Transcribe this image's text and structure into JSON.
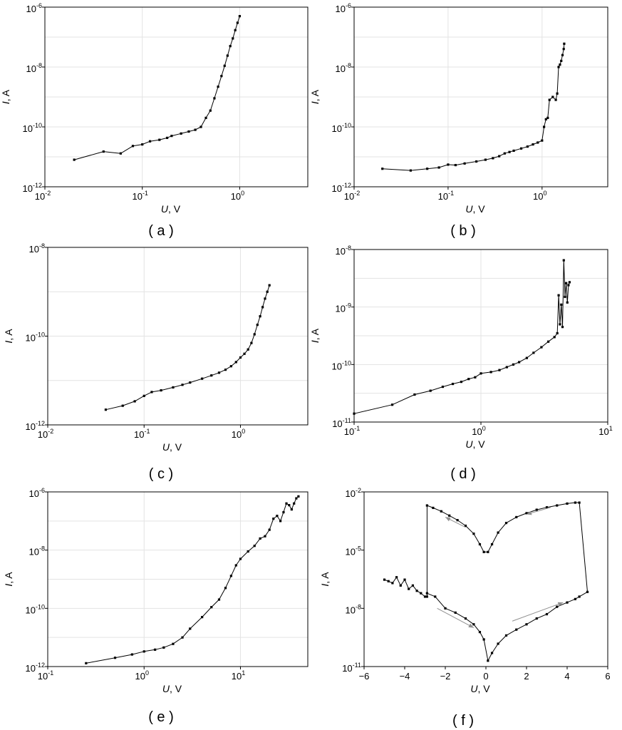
{
  "chart_data": [
    {
      "id": "a",
      "type": "line",
      "panel_label": "( a )",
      "xscale": "log",
      "yscale": "log",
      "xlim": [
        0.01,
        5
      ],
      "ylim": [
        1e-12,
        1e-06
      ],
      "xticks": [
        {
          "v": 0.01,
          "base": "10",
          "exp": "-2"
        },
        {
          "v": 0.1,
          "base": "10",
          "exp": "-1"
        },
        {
          "v": 1,
          "base": "10",
          "exp": "0"
        }
      ],
      "yticks": [
        {
          "v": 1e-12,
          "base": "10",
          "exp": "-12"
        },
        {
          "v": 1e-10,
          "base": "10",
          "exp": "-10"
        },
        {
          "v": 1e-08,
          "base": "10",
          "exp": "-8"
        },
        {
          "v": 1e-06,
          "base": "10",
          "exp": "-6"
        }
      ],
      "xlabel": {
        "var": "U",
        "unit": ", V"
      },
      "ylabel": {
        "var": "I",
        "unit": ", A"
      },
      "grid": true,
      "x": [
        0.02,
        0.04,
        0.06,
        0.08,
        0.1,
        0.12,
        0.15,
        0.18,
        0.2,
        0.25,
        0.3,
        0.35,
        0.4,
        0.45,
        0.5,
        0.55,
        0.6,
        0.65,
        0.7,
        0.75,
        0.8,
        0.85,
        0.9,
        0.95,
        1.0
      ],
      "y": [
        8e-12,
        1.5e-11,
        1.3e-11,
        2.3e-11,
        2.6e-11,
        3.3e-11,
        3.7e-11,
        4.3e-11,
        5e-11,
        6e-11,
        7e-11,
        8e-11,
        1e-10,
        2e-10,
        3.5e-10,
        9e-10,
        2.2e-09,
        5e-09,
        1.1e-08,
        2.4e-08,
        5e-08,
        9e-08,
        1.7e-07,
        3e-07,
        5e-07
      ]
    },
    {
      "id": "b",
      "type": "line",
      "panel_label": "( b )",
      "xscale": "log",
      "yscale": "log",
      "xlim": [
        0.01,
        5
      ],
      "ylim": [
        1e-12,
        1e-06
      ],
      "xticks": [
        {
          "v": 0.01,
          "base": "10",
          "exp": "-2"
        },
        {
          "v": 0.1,
          "base": "10",
          "exp": "-1"
        },
        {
          "v": 1,
          "base": "10",
          "exp": "0"
        }
      ],
      "yticks": [
        {
          "v": 1e-12,
          "base": "10",
          "exp": "-12"
        },
        {
          "v": 1e-10,
          "base": "10",
          "exp": "-10"
        },
        {
          "v": 1e-08,
          "base": "10",
          "exp": "-8"
        },
        {
          "v": 1e-06,
          "base": "10",
          "exp": "-6"
        }
      ],
      "xlabel": {
        "var": "U",
        "unit": ", V"
      },
      "ylabel": {
        "var": "I",
        "unit": ", A"
      },
      "grid": true,
      "x": [
        0.02,
        0.04,
        0.06,
        0.08,
        0.1,
        0.12,
        0.15,
        0.2,
        0.25,
        0.3,
        0.35,
        0.4,
        0.45,
        0.5,
        0.6,
        0.7,
        0.8,
        0.9,
        1.0,
        1.05,
        1.1,
        1.15,
        1.2,
        1.3,
        1.4,
        1.45,
        1.5,
        1.55,
        1.6,
        1.65,
        1.7,
        1.72
      ],
      "y": [
        4e-12,
        3.5e-12,
        4e-12,
        4.4e-12,
        5.5e-12,
        5.3e-12,
        6e-12,
        7e-12,
        8e-12,
        9e-12,
        1.05e-11,
        1.3e-11,
        1.45e-11,
        1.6e-11,
        1.9e-11,
        2.2e-11,
        2.6e-11,
        3e-11,
        3.5e-11,
        1e-10,
        1.8e-10,
        2e-10,
        8e-10,
        1e-09,
        8e-10,
        1.3e-09,
        1e-08,
        1.2e-08,
        1.6e-08,
        2.5e-08,
        4e-08,
        6e-08
      ]
    },
    {
      "id": "c",
      "type": "line",
      "panel_label": "( c )",
      "xscale": "log",
      "yscale": "log",
      "xlim": [
        0.01,
        5
      ],
      "ylim": [
        1e-12,
        1e-08
      ],
      "xticks": [
        {
          "v": 0.01,
          "base": "10",
          "exp": "-2"
        },
        {
          "v": 0.1,
          "base": "10",
          "exp": "-1"
        },
        {
          "v": 1,
          "base": "10",
          "exp": "0"
        }
      ],
      "yticks": [
        {
          "v": 1e-12,
          "base": "10",
          "exp": "-12"
        },
        {
          "v": 1e-10,
          "base": "10",
          "exp": "-10"
        },
        {
          "v": 1e-08,
          "base": "10",
          "exp": "-8"
        }
      ],
      "xlabel": {
        "var": "U",
        "unit": ", V"
      },
      "ylabel": {
        "var": "I",
        "unit": ", A"
      },
      "grid": true,
      "x": [
        0.04,
        0.06,
        0.08,
        0.1,
        0.12,
        0.15,
        0.2,
        0.25,
        0.3,
        0.4,
        0.5,
        0.6,
        0.7,
        0.8,
        0.9,
        1.0,
        1.1,
        1.2,
        1.3,
        1.4,
        1.5,
        1.6,
        1.7,
        1.8,
        1.9,
        2.0
      ],
      "y": [
        2.2e-12,
        2.7e-12,
        3.4e-12,
        4.5e-12,
        5.5e-12,
        6e-12,
        7e-12,
        8e-12,
        9e-12,
        1.1e-11,
        1.3e-11,
        1.5e-11,
        1.75e-11,
        2.1e-11,
        2.6e-11,
        3.3e-11,
        4e-11,
        5e-11,
        7e-11,
        1.1e-10,
        1.8e-10,
        2.8e-10,
        4.5e-10,
        7e-10,
        1e-09,
        1.4e-09
      ]
    },
    {
      "id": "d",
      "type": "line",
      "panel_label": "( d )",
      "xscale": "log",
      "yscale": "log",
      "xlim": [
        0.1,
        10
      ],
      "ylim": [
        1e-11,
        1e-08
      ],
      "xticks": [
        {
          "v": 0.1,
          "base": "10",
          "exp": "-1"
        },
        {
          "v": 1,
          "base": "10",
          "exp": "0"
        },
        {
          "v": 10,
          "base": "10",
          "exp": "1"
        }
      ],
      "yticks": [
        {
          "v": 1e-11,
          "base": "10",
          "exp": "-11"
        },
        {
          "v": 1e-10,
          "base": "10",
          "exp": "-10"
        },
        {
          "v": 1e-09,
          "base": "10",
          "exp": "-9"
        },
        {
          "v": 1e-08,
          "base": "10",
          "exp": "-8"
        }
      ],
      "xlabel": {
        "var": "U",
        "unit": ", V"
      },
      "ylabel": {
        "var": "I",
        "unit": ", A"
      },
      "grid": true,
      "x": [
        0.1,
        0.2,
        0.3,
        0.4,
        0.5,
        0.6,
        0.7,
        0.8,
        0.9,
        1.0,
        1.2,
        1.4,
        1.6,
        1.8,
        2.0,
        2.3,
        2.6,
        3.0,
        3.4,
        3.8,
        4.0,
        4.1,
        4.2,
        4.3,
        4.4,
        4.5,
        4.6,
        4.7,
        4.8,
        4.9,
        5.0
      ],
      "y": [
        1.4e-11,
        2e-11,
        3e-11,
        3.5e-11,
        4.1e-11,
        4.6e-11,
        5e-11,
        5.6e-11,
        6e-11,
        7e-11,
        7.4e-11,
        8e-11,
        9e-11,
        1e-10,
        1.1e-10,
        1.3e-10,
        1.6e-10,
        2e-10,
        2.5e-10,
        3e-10,
        3.5e-10,
        1.6e-09,
        5e-10,
        1.1e-09,
        4.5e-10,
        6.5e-09,
        1.5e-09,
        2.6e-09,
        1.2e-09,
        2.4e-09,
        2.7e-09
      ]
    },
    {
      "id": "e",
      "type": "line",
      "panel_label": "( e )",
      "xscale": "log",
      "yscale": "log",
      "xlim": [
        0.1,
        50
      ],
      "ylim": [
        1e-12,
        1e-06
      ],
      "xticks": [
        {
          "v": 0.1,
          "base": "10",
          "exp": "-1"
        },
        {
          "v": 1,
          "base": "10",
          "exp": "0"
        },
        {
          "v": 10,
          "base": "10",
          "exp": "1"
        }
      ],
      "yticks": [
        {
          "v": 1e-12,
          "base": "10",
          "exp": "-12"
        },
        {
          "v": 1e-10,
          "base": "10",
          "exp": "-10"
        },
        {
          "v": 1e-08,
          "base": "10",
          "exp": "-8"
        },
        {
          "v": 1e-06,
          "base": "10",
          "exp": "-6"
        }
      ],
      "xlabel": {
        "var": "U",
        "unit": ", V"
      },
      "ylabel": {
        "var": "I",
        "unit": ", A"
      },
      "grid": true,
      "x": [
        0.25,
        0.5,
        0.75,
        1.0,
        1.3,
        1.6,
        2.0,
        2.5,
        3.0,
        4.0,
        5.0,
        6.0,
        7.0,
        8.0,
        9.0,
        10,
        12,
        14,
        16,
        18,
        20,
        22,
        24,
        26,
        28,
        30,
        32,
        34,
        36,
        38,
        40
      ],
      "y": [
        1.3e-12,
        2e-12,
        2.6e-12,
        3.3e-12,
        3.8e-12,
        4.5e-12,
        6e-12,
        1e-11,
        2e-11,
        5e-11,
        1.1e-10,
        2e-10,
        5e-10,
        1.3e-09,
        3e-09,
        5e-09,
        9e-09,
        1.4e-08,
        2.5e-08,
        3e-08,
        5e-08,
        1.2e-07,
        1.5e-07,
        1e-07,
        2e-07,
        4e-07,
        3.5e-07,
        2.5e-07,
        4e-07,
        6e-07,
        7e-07
      ]
    },
    {
      "id": "f",
      "type": "line",
      "panel_label": "( f )",
      "xscale": "linear",
      "yscale": "log",
      "xlim": [
        -6,
        6
      ],
      "ylim": [
        1e-11,
        0.01
      ],
      "xticks": [
        {
          "v": -6,
          "base": "−6",
          "exp": ""
        },
        {
          "v": -4,
          "base": "−4",
          "exp": ""
        },
        {
          "v": -2,
          "base": "−2",
          "exp": ""
        },
        {
          "v": 0,
          "base": "0",
          "exp": ""
        },
        {
          "v": 2,
          "base": "2",
          "exp": ""
        },
        {
          "v": 4,
          "base": "4",
          "exp": ""
        },
        {
          "v": 6,
          "base": "6",
          "exp": ""
        }
      ],
      "yticks": [
        {
          "v": 1e-11,
          "base": "10",
          "exp": "-11"
        },
        {
          "v": 1e-08,
          "base": "10",
          "exp": "-8"
        },
        {
          "v": 1e-05,
          "base": "10",
          "exp": "-5"
        },
        {
          "v": 0.01,
          "base": "10",
          "exp": "-2"
        }
      ],
      "xlabel": {
        "var": "U",
        "unit": ", V"
      },
      "ylabel": {
        "var": "I",
        "unit": ", A"
      },
      "grid": false,
      "x": [
        -5,
        -4.8,
        -4.6,
        -4.4,
        -4.2,
        -4.0,
        -3.8,
        -3.6,
        -3.4,
        -3.2,
        -3.0,
        -2.9,
        -2.9,
        -2.6,
        -2.2,
        -1.8,
        -1.4,
        -1.0,
        -0.6,
        -0.3,
        -0.1,
        0.1,
        0.3,
        0.6,
        1.0,
        1.5,
        2.0,
        2.5,
        3.0,
        3.5,
        4.0,
        4.4,
        4.6,
        5.0,
        4.6,
        4.4,
        4.0,
        3.5,
        3.0,
        2.5,
        2.0,
        1.5,
        1.0,
        0.6,
        0.3,
        0.1,
        -0.1,
        -0.3,
        -0.6,
        -1.0,
        -1.5,
        -2.0,
        -2.5,
        -2.9
      ],
      "y": [
        3e-07,
        2.5e-07,
        2e-07,
        4e-07,
        1.5e-07,
        3e-07,
        1e-07,
        1.5e-07,
        8e-08,
        6e-08,
        4e-08,
        4e-08,
        0.002,
        0.0015,
        0.001,
        0.0006,
        0.00035,
        0.00018,
        7e-05,
        2e-05,
        8e-06,
        8e-06,
        2e-05,
        8e-05,
        0.00025,
        0.0005,
        0.0008,
        0.0012,
        0.0016,
        0.002,
        0.0025,
        0.0028,
        0.0028,
        7e-08,
        4e-08,
        3e-08,
        2e-08,
        1.2e-08,
        5e-09,
        3e-09,
        1.5e-09,
        8e-10,
        4e-10,
        1.5e-10,
        5e-11,
        2e-11,
        2.5e-10,
        6e-10,
        1.5e-09,
        3e-09,
        6e-09,
        1e-08,
        4e-08,
        6e-08
      ],
      "arrows": [
        {
          "from": [
            -1.0,
            0.00015
          ],
          "to": [
            -2.0,
            0.0005
          ]
        },
        {
          "from": [
            3.2,
            0.0016
          ],
          "to": [
            2.0,
            0.0007
          ]
        },
        {
          "from": [
            -2.4,
            1e-08
          ],
          "to": [
            -0.6,
            1e-09
          ]
        },
        {
          "from": [
            1.3,
            2.2e-09
          ],
          "to": [
            3.8,
            2e-08
          ]
        }
      ]
    }
  ]
}
